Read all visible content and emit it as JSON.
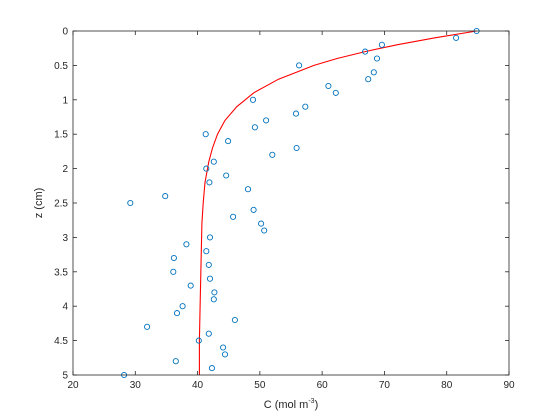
{
  "chart_data": {
    "type": "scatter",
    "xlabel": "C (mol m",
    "xlabel_sup": "-3",
    "xlabel_end": ")",
    "ylabel": "z (cm)",
    "xlim": [
      20,
      90
    ],
    "ylim": [
      0,
      5
    ],
    "y_reversed": true,
    "grid": false,
    "x_ticks": [
      20,
      30,
      40,
      50,
      60,
      70,
      80,
      90
    ],
    "y_ticks": [
      0,
      0.5,
      1,
      1.5,
      2,
      2.5,
      3,
      3.5,
      4,
      4.5,
      5
    ],
    "y_tick_labels": [
      "0",
      "0.5",
      "1",
      "1.5",
      "2",
      "2.5",
      "3",
      "3.5",
      "4",
      "4.5",
      "5"
    ],
    "series": [
      {
        "kind": "scatter",
        "marker": "circle",
        "color": "#0072BD",
        "points": [
          [
            84.8,
            0.0
          ],
          [
            81.5,
            0.1
          ],
          [
            69.6,
            0.2
          ],
          [
            66.9,
            0.3
          ],
          [
            68.8,
            0.4
          ],
          [
            56.3,
            0.5
          ],
          [
            68.3,
            0.6
          ],
          [
            67.4,
            0.7
          ],
          [
            61.0,
            0.8
          ],
          [
            62.2,
            0.9
          ],
          [
            48.9,
            1.0
          ],
          [
            57.3,
            1.1
          ],
          [
            55.8,
            1.2
          ],
          [
            51.0,
            1.3
          ],
          [
            49.2,
            1.4
          ],
          [
            41.3,
            1.5
          ],
          [
            44.9,
            1.6
          ],
          [
            55.9,
            1.7
          ],
          [
            52.0,
            1.8
          ],
          [
            42.6,
            1.9
          ],
          [
            41.4,
            2.0
          ],
          [
            44.6,
            2.1
          ],
          [
            41.9,
            2.2
          ],
          [
            48.1,
            2.3
          ],
          [
            34.8,
            2.4
          ],
          [
            29.2,
            2.5
          ],
          [
            49.0,
            2.6
          ],
          [
            45.7,
            2.7
          ],
          [
            50.2,
            2.8
          ],
          [
            50.7,
            2.9
          ],
          [
            42.0,
            3.0
          ],
          [
            38.2,
            3.1
          ],
          [
            41.4,
            3.2
          ],
          [
            36.2,
            3.3
          ],
          [
            41.8,
            3.4
          ],
          [
            36.1,
            3.5
          ],
          [
            42.0,
            3.6
          ],
          [
            38.9,
            3.7
          ],
          [
            42.7,
            3.8
          ],
          [
            42.6,
            3.9
          ],
          [
            37.6,
            4.0
          ],
          [
            36.7,
            4.1
          ],
          [
            46.0,
            4.2
          ],
          [
            31.9,
            4.3
          ],
          [
            41.8,
            4.4
          ],
          [
            40.2,
            4.5
          ],
          [
            44.1,
            4.6
          ],
          [
            44.4,
            4.7
          ],
          [
            36.5,
            4.8
          ],
          [
            42.3,
            4.9
          ],
          [
            28.2,
            5.0
          ]
        ]
      },
      {
        "kind": "line",
        "color": "#FF0000",
        "points": [
          [
            84.8,
            0.0
          ],
          [
            78.0,
            0.1
          ],
          [
            72.0,
            0.2
          ],
          [
            66.9,
            0.3
          ],
          [
            62.4,
            0.4
          ],
          [
            58.7,
            0.5
          ],
          [
            53.0,
            0.7
          ],
          [
            49.0,
            0.9
          ],
          [
            46.3,
            1.1
          ],
          [
            44.4,
            1.3
          ],
          [
            43.2,
            1.5
          ],
          [
            42.4,
            1.7
          ],
          [
            41.8,
            1.9
          ],
          [
            41.2,
            2.2
          ],
          [
            40.9,
            2.5
          ],
          [
            40.7,
            2.8
          ],
          [
            40.6,
            3.2
          ],
          [
            40.5,
            3.6
          ],
          [
            40.4,
            4.0
          ],
          [
            40.3,
            4.5
          ],
          [
            40.3,
            5.0
          ]
        ]
      }
    ]
  }
}
